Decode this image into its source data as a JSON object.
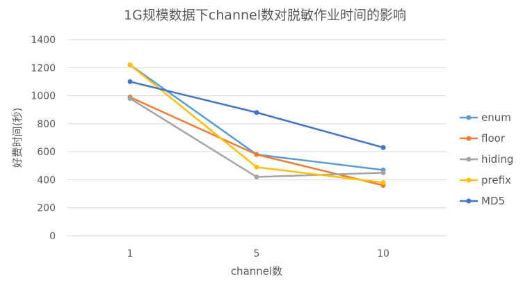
{
  "chart_data": {
    "type": "line",
    "title": "1G规模数据下channel数对脱敏作业时间的影响",
    "xlabel": "channel数",
    "ylabel": "好费时间(秒)",
    "categories": [
      "1",
      "5",
      "10"
    ],
    "ylim": [
      0,
      1400
    ],
    "yticks": [
      0,
      200,
      400,
      600,
      800,
      1000,
      1200,
      1400
    ],
    "grid": true,
    "legend_position": "right",
    "series": [
      {
        "name": "enum",
        "color": "#5b9bd5",
        "values": [
          1220,
          580,
          470
        ]
      },
      {
        "name": "floor",
        "color": "#ed7d31",
        "values": [
          990,
          580,
          360
        ]
      },
      {
        "name": "hiding",
        "color": "#a5a5a5",
        "values": [
          980,
          420,
          450
        ]
      },
      {
        "name": "prefix",
        "color": "#ffc000",
        "values": [
          1220,
          490,
          380
        ]
      },
      {
        "name": "MD5",
        "color": "#4472c4",
        "values": [
          1100,
          880,
          630
        ]
      }
    ]
  }
}
